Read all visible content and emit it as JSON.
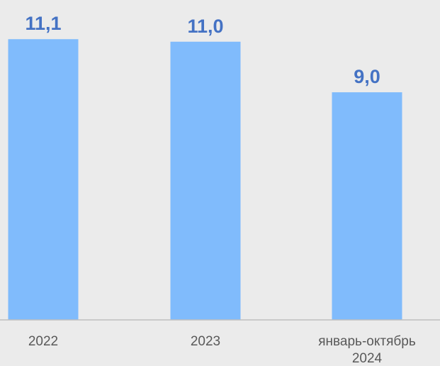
{
  "chart_data": {
    "type": "bar",
    "categories": [
      "2022",
      "2023",
      "январь-октябрь 2024"
    ],
    "category_lines": [
      [
        "2022"
      ],
      [
        "2023"
      ],
      [
        "январь-октябрь",
        "2024"
      ]
    ],
    "values": [
      11.1,
      11.0,
      9.0
    ],
    "data_labels": [
      "11,1",
      "11,0",
      "9,0"
    ],
    "title": "",
    "xlabel": "",
    "ylabel": "",
    "ylim": [
      0,
      12.2
    ],
    "grid": false,
    "legend": "none",
    "colors": {
      "bar": "#80bbfc",
      "data_label": "#4472c4",
      "tick_label": "#595959",
      "axis": "#bfbfbf",
      "background": "#ebebeb"
    }
  }
}
